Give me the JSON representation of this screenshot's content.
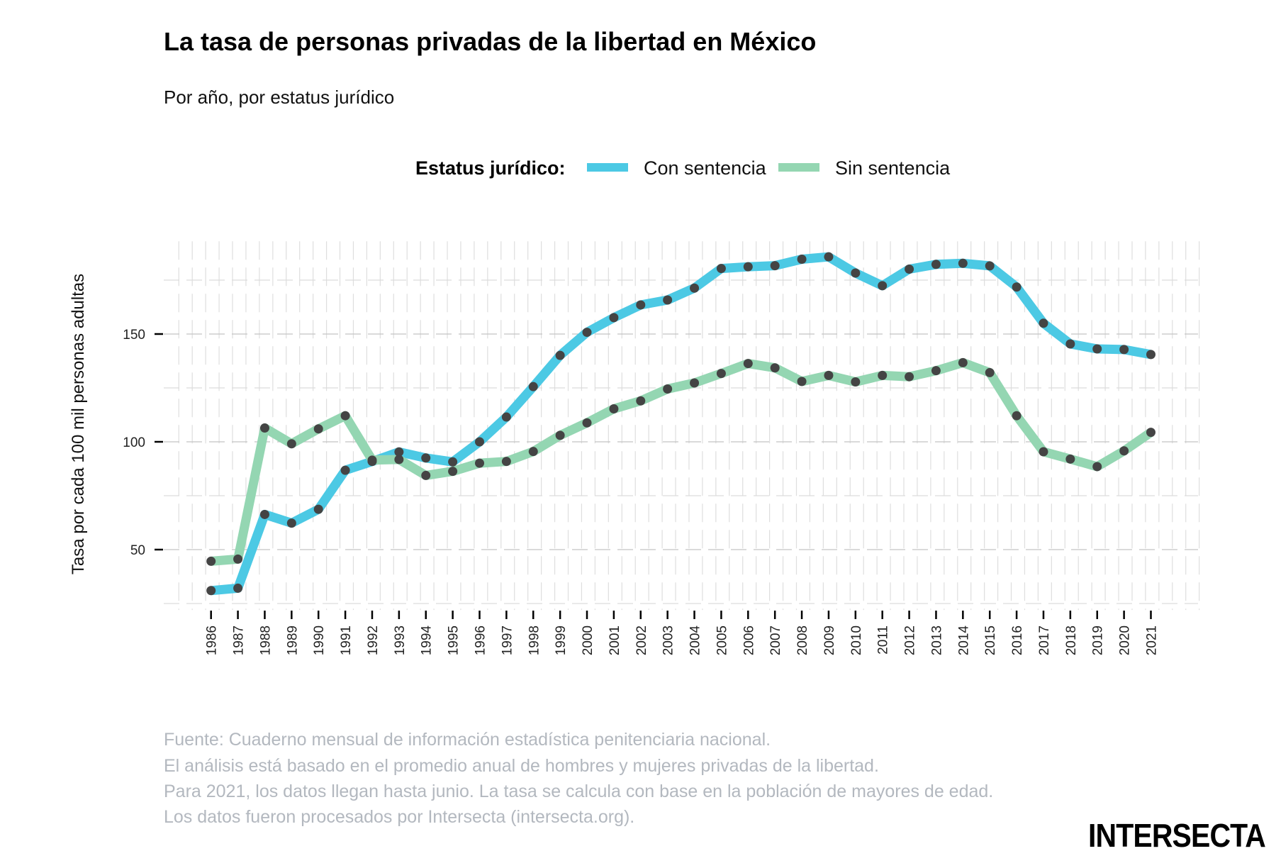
{
  "chart_data": {
    "type": "line",
    "title": "La tasa de personas privadas de la libertad en México",
    "subtitle": "Por año, por estatus jurídico",
    "xlabel": "",
    "ylabel": "Tasa por cada 100 mil personas adultas",
    "x": [
      1986,
      1987,
      1988,
      1989,
      1990,
      1991,
      1992,
      1993,
      1994,
      1995,
      1996,
      1997,
      1998,
      1999,
      2000,
      2001,
      2002,
      2003,
      2004,
      2005,
      2006,
      2007,
      2008,
      2009,
      2010,
      2011,
      2012,
      2013,
      2014,
      2015,
      2016,
      2017,
      2018,
      2019,
      2020,
      2021
    ],
    "x_tick_labels": [
      "1986",
      "1987",
      "1988",
      "1989",
      "1990",
      "1991",
      "1992",
      "1993",
      "1994",
      "1995",
      "1996",
      "1997",
      "1998",
      "1999",
      "2000",
      "2001",
      "2002",
      "2003",
      "2004",
      "2005",
      "2006",
      "2007",
      "2008",
      "2009",
      "2010",
      "2011",
      "2012",
      "2013",
      "2014",
      "2015",
      "2016",
      "2017",
      "2018",
      "2019",
      "2020",
      "2021"
    ],
    "y_ticks": [
      50,
      100,
      150
    ],
    "y_tick_labels": [
      "50",
      "100",
      "150"
    ],
    "y_minor_gridlines": [
      25,
      75,
      125,
      175
    ],
    "ylim": [
      22,
      193
    ],
    "xlim": [
      1984.8,
      2022.8
    ],
    "grid": true,
    "legend": {
      "title": "Estatus jurídico:",
      "position": "top-center"
    },
    "series": [
      {
        "name": "Con sentencia",
        "color": "#4cc9e4",
        "values": [
          31.0,
          32.1,
          66.3,
          62.3,
          68.7,
          86.8,
          90.9,
          95.3,
          92.5,
          90.7,
          100.0,
          111.5,
          125.6,
          140.1,
          150.8,
          157.6,
          163.5,
          165.8,
          171.3,
          180.4,
          181.2,
          181.7,
          184.7,
          185.8,
          178.3,
          172.4,
          180.1,
          182.3,
          182.8,
          181.6,
          171.8,
          155.0,
          145.4,
          143.1,
          142.8,
          140.5
        ]
      },
      {
        "name": "Sin sentencia",
        "color": "#94d6b2",
        "values": [
          44.6,
          45.6,
          106.4,
          99.1,
          106.0,
          112.1,
          91.5,
          91.8,
          84.4,
          86.3,
          90.1,
          90.9,
          95.5,
          103.0,
          108.8,
          115.3,
          119.0,
          124.5,
          127.3,
          131.7,
          136.3,
          134.3,
          128.0,
          130.8,
          127.8,
          130.8,
          130.2,
          133.0,
          136.7,
          132.1,
          112.1,
          95.4,
          92.0,
          88.5,
          95.8,
          104.4
        ]
      }
    ],
    "point_color": "#444444",
    "caption": [
      "Fuente: Cuaderno mensual de información estadística penitenciaria nacional.",
      "El análisis está basado en el promedio anual de hombres y mujeres privadas de la libertad.",
      "Para 2021, los datos llegan hasta junio. La tasa se calcula con base en la población de mayores de edad.",
      "Los datos fueron procesados por Intersecta (intersecta.org)."
    ],
    "logo": "INTERSECTA"
  }
}
